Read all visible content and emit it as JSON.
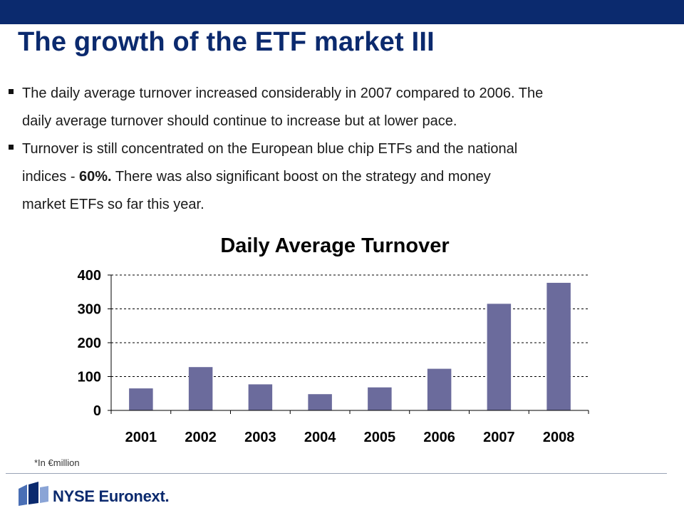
{
  "slide": {
    "title": "The growth of the ETF market III",
    "bullets": [
      {
        "lines": [
          "The daily average turnover increased considerably in 2007 compared to 2006. The",
          "daily average turnover should continue to increase but at lower pace."
        ]
      },
      {
        "line1": "Turnover is still concentrated on the European blue chip ETFs and the national",
        "line2_prefix": "indices - ",
        "line2_bold": "60%.",
        "line2_suffix": " There was also significant boost on the strategy and money",
        "line3": "market ETFs so far this year."
      }
    ],
    "note": "*In €million",
    "logo_text": "NYSE Euronext.",
    "colors": {
      "brand": "#0b2a6e",
      "bar": "#6b6b9c"
    }
  },
  "chart_data": {
    "type": "bar",
    "title": "Daily Average Turnover",
    "categories": [
      "2001",
      "2002",
      "2003",
      "2004",
      "2005",
      "2006",
      "2007",
      "2008"
    ],
    "values": [
      65,
      128,
      77,
      48,
      68,
      123,
      315,
      377
    ],
    "ylim": [
      0,
      400
    ],
    "yticks": [
      0,
      100,
      200,
      300,
      400
    ],
    "xlabel": "",
    "ylabel": "",
    "grid": true,
    "legend": "none"
  }
}
